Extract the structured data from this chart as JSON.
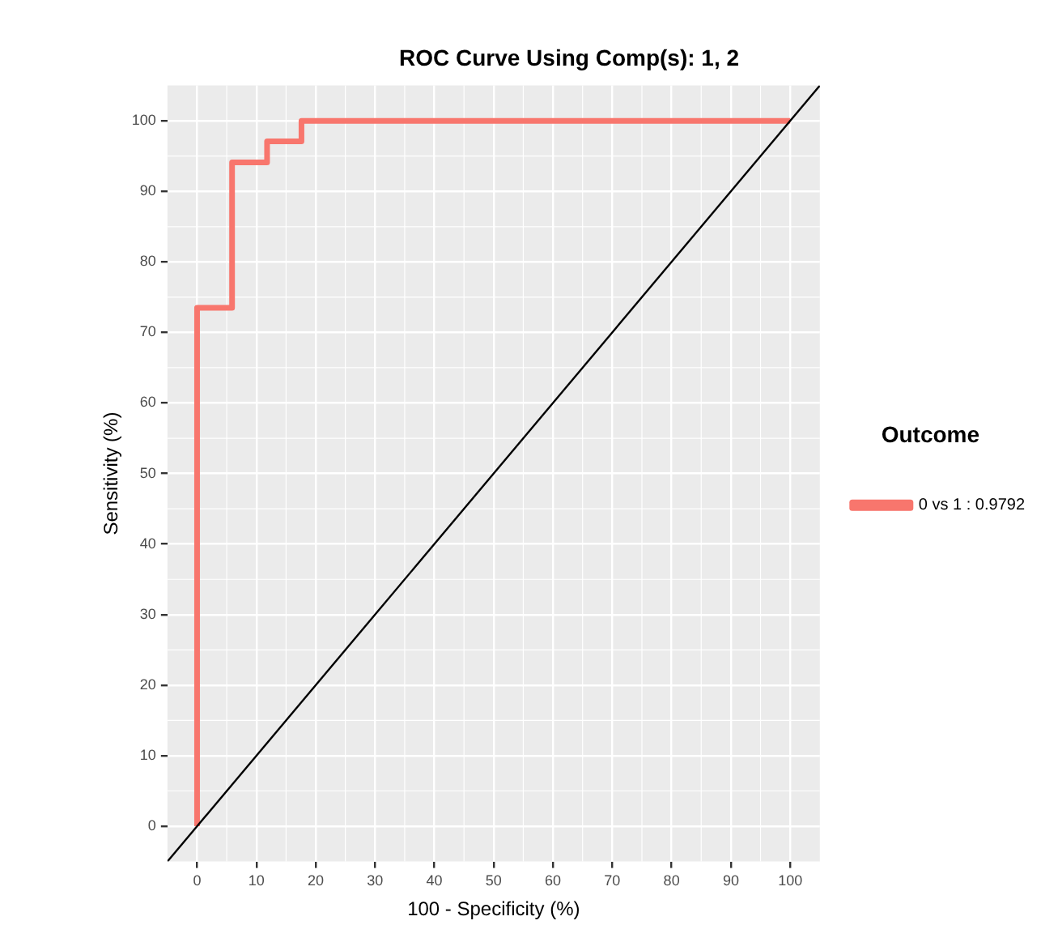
{
  "chart_data": {
    "type": "line",
    "title": "ROC Curve Using Comp(s): 1, 2",
    "xlabel": "100 - Specificity (%)",
    "ylabel": "Sensitivity (%)",
    "legend_title": "Outcome",
    "series": [
      {
        "name": "0 vs 1 : 0.9792",
        "color": "#f8766d",
        "x": [
          0,
          0,
          5.9,
          5.9,
          11.8,
          11.8,
          17.6,
          17.6,
          100
        ],
        "values": [
          0,
          73.5,
          73.5,
          94.1,
          94.1,
          97.1,
          97.1,
          100,
          100
        ]
      },
      {
        "color": "#000000",
        "x": [
          -5,
          105
        ],
        "values": [
          -5,
          105
        ]
      }
    ],
    "xlim": [
      -5,
      105
    ],
    "ylim": [
      -5,
      105
    ],
    "xticks": [
      0,
      10,
      20,
      30,
      40,
      50,
      60,
      70,
      80,
      90,
      100
    ],
    "yticks": [
      0,
      10,
      20,
      30,
      40,
      50,
      60,
      70,
      80,
      90,
      100
    ],
    "grid": true,
    "legend": "right",
    "marker": "none",
    "line_style": "solid"
  }
}
